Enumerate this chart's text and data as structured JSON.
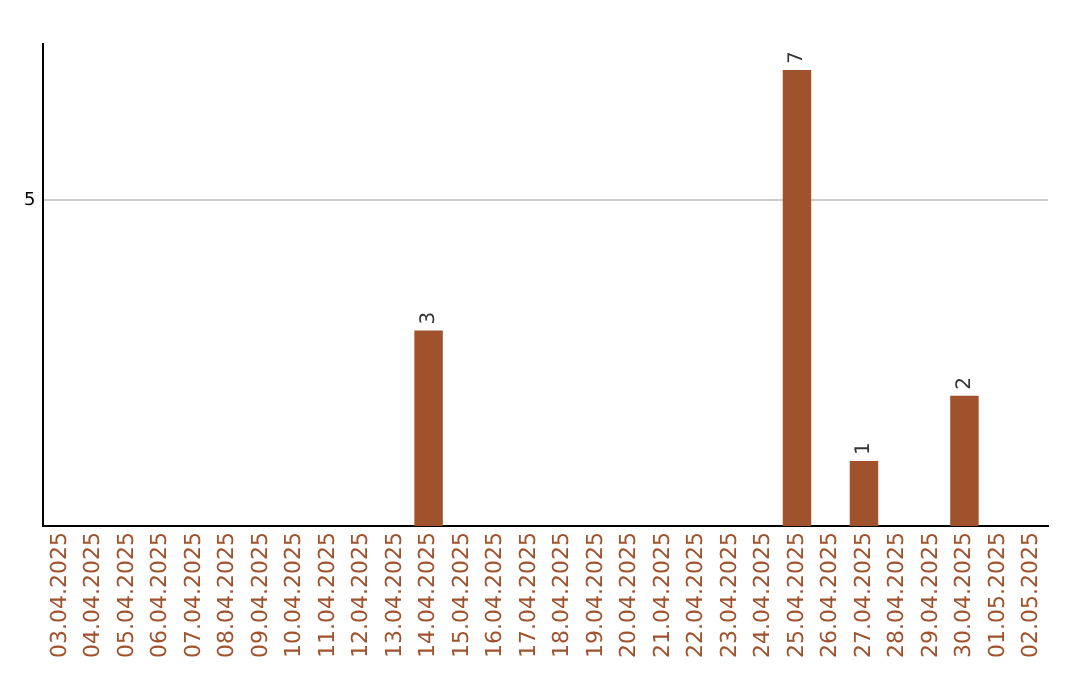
{
  "chart_data": {
    "type": "bar",
    "categories": [
      "03.04.2025",
      "04.04.2025",
      "05.04.2025",
      "06.04.2025",
      "07.04.2025",
      "08.04.2025",
      "09.04.2025",
      "10.04.2025",
      "11.04.2025",
      "12.04.2025",
      "13.04.2025",
      "14.04.2025",
      "15.04.2025",
      "16.04.2025",
      "17.04.2025",
      "18.04.2025",
      "19.04.2025",
      "20.04.2025",
      "21.04.2025",
      "22.04.2025",
      "23.04.2025",
      "24.04.2025",
      "25.04.2025",
      "26.04.2025",
      "27.04.2025",
      "28.04.2025",
      "29.04.2025",
      "30.04.2025",
      "01.05.2025",
      "02.05.2025"
    ],
    "values": [
      0,
      0,
      0,
      0,
      0,
      0,
      0,
      0,
      0,
      0,
      0,
      3,
      0,
      0,
      0,
      0,
      0,
      0,
      0,
      0,
      0,
      0,
      7,
      0,
      1,
      0,
      0,
      2,
      0,
      0
    ],
    "value_labels": [
      null,
      null,
      null,
      null,
      null,
      null,
      null,
      null,
      null,
      null,
      null,
      "3",
      null,
      null,
      null,
      null,
      null,
      null,
      null,
      null,
      null,
      null,
      "7",
      null,
      "1",
      null,
      null,
      "2",
      null,
      null
    ],
    "color": "#a0522d",
    "ylim": [
      0,
      7.4
    ],
    "yticks": [
      5
    ],
    "grid": "y"
  }
}
